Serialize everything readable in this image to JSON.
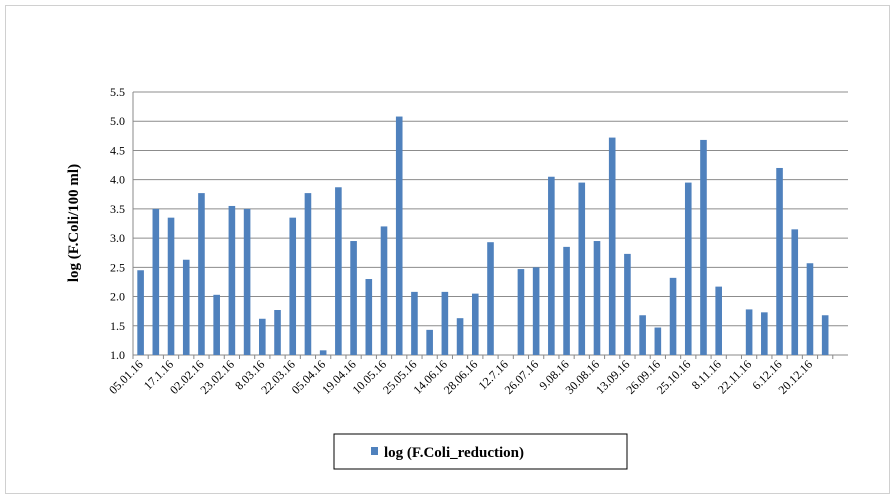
{
  "chart_data": {
    "type": "bar",
    "y_label": "log (F.Coli/100 ml)",
    "categories": [
      "05.01.16",
      null,
      "17.1.16",
      null,
      "02.02.16",
      null,
      "23.02.16",
      null,
      "8.03.16",
      null,
      "22.03.16",
      null,
      "05.04.16",
      null,
      "19.04.16",
      null,
      "10.05.16",
      null,
      "25.05.16",
      null,
      "14.06.16",
      null,
      "28.06.16",
      null,
      "12.7.16",
      null,
      "26.07.16",
      null,
      "9.08.16",
      null,
      "30.08.16",
      null,
      "13.09.16",
      null,
      "26.09.16",
      null,
      "25.10.16",
      null,
      "8.11.16",
      null,
      "22.11.16",
      null,
      "6.12.16",
      null,
      "20.12.16",
      null,
      null
    ],
    "series": [
      {
        "name": "log (F.Coli_reduction)",
        "color": "#4f81bd",
        "values": [
          2.45,
          3.5,
          3.35,
          2.63,
          3.77,
          2.03,
          3.55,
          3.5,
          1.62,
          1.77,
          3.35,
          3.77,
          1.08,
          3.87,
          2.95,
          2.3,
          3.2,
          5.08,
          2.08,
          1.43,
          2.08,
          1.63,
          2.05,
          2.93,
          null,
          2.47,
          2.5,
          4.05,
          2.85,
          3.95,
          2.95,
          4.72,
          2.73,
          1.68,
          1.47,
          2.32,
          3.95,
          4.68,
          2.17,
          null,
          1.78,
          1.73,
          4.2,
          3.15,
          2.57,
          1.68,
          null
        ]
      }
    ],
    "ylim": [
      1.0,
      5.5
    ],
    "yticks": [
      {
        "value": 1.0,
        "label": "1.0"
      },
      1.5,
      {
        "value": 2.0,
        "label": "2.0"
      },
      2.5,
      {
        "value": 3.0,
        "label": "3.0"
      },
      3.5,
      {
        "value": 4.0,
        "label": "4.0"
      },
      4.5,
      {
        "value": 5.0,
        "label": "5.0"
      },
      5.5
    ],
    "grid": true,
    "legend": "bottom"
  }
}
